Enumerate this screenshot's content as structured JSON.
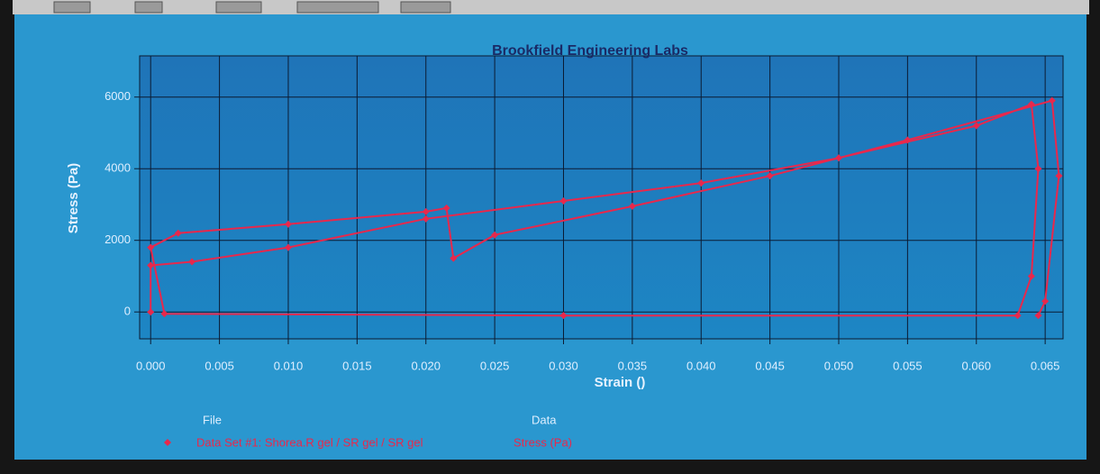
{
  "chart_data": {
    "type": "line",
    "title": "Brookfield Engineering Labs",
    "x_label": "Strain ()",
    "y_label": "Stress (Pa)",
    "x": [
      0,
      0,
      0.003,
      0.01,
      0.02,
      0.03,
      0.04,
      0.05,
      0.06,
      0.064,
      0.0645,
      0.064,
      0.063,
      0.03,
      0.001,
      0,
      0.002,
      0.01,
      0.02,
      0.0215,
      0.022,
      0.025,
      0.035,
      0.045,
      0.055,
      0.0655,
      0.066,
      0.065,
      0.0645
    ],
    "series": [
      {
        "name": "Stress (Pa)",
        "file": "Data Set #1: Shorea.R gel / SR gel / SR gel",
        "color": "#e8284c",
        "values": [
          0,
          1300,
          1400,
          1800,
          2600,
          3100,
          3600,
          4300,
          5200,
          5800,
          4000,
          1000,
          -100,
          -100,
          -50,
          1800,
          2200,
          2450,
          2800,
          2900,
          1500,
          2150,
          2950,
          3800,
          4800,
          5900,
          3800,
          300,
          -100
        ]
      }
    ],
    "legend_headers": [
      "File",
      "Data"
    ],
    "xlim": [
      -0.0008,
      0.0663
    ],
    "ylim": [
      -750,
      7150
    ],
    "xticks": [
      {
        "value": 0,
        "label": "0.000"
      },
      0.005,
      {
        "value": 0.01,
        "label": "0.010"
      },
      0.015,
      {
        "value": 0.02,
        "label": "0.020"
      },
      0.025,
      {
        "value": 0.03,
        "label": "0.030"
      },
      0.035,
      {
        "value": 0.04,
        "label": "0.040"
      },
      0.045,
      {
        "value": 0.05,
        "label": "0.050"
      },
      0.055,
      {
        "value": 0.06,
        "label": "0.060"
      },
      0.065
    ],
    "yticks": [
      0,
      2000,
      4000,
      6000
    ],
    "grid": true
  }
}
